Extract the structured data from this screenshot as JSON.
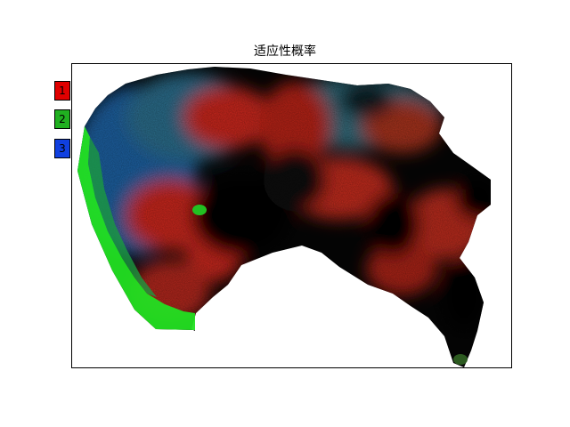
{
  "title": "适应性概率",
  "legend": [
    {
      "label": "1",
      "color": "#e00000"
    },
    {
      "label": "2",
      "color": "#20b020"
    },
    {
      "label": "3",
      "color": "#1040e0"
    }
  ],
  "colors": {
    "dark": "#050505",
    "red": "#c8281c",
    "blue": "#1f5f9f",
    "teal": "#2f6a7a",
    "green": "#20e020"
  }
}
